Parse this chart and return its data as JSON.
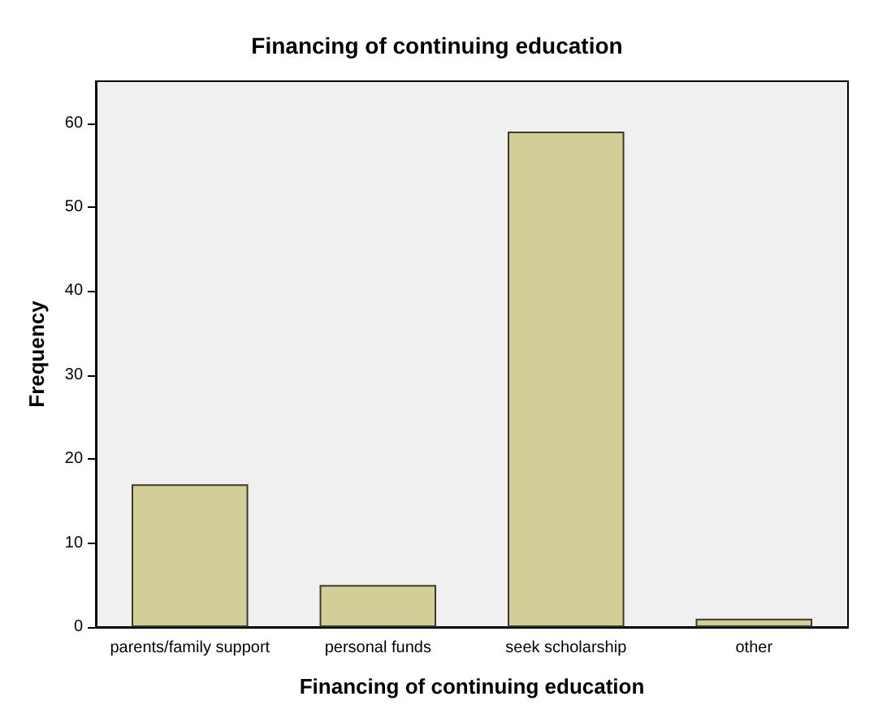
{
  "chart_data": {
    "type": "bar",
    "title": "Financing of continuing education",
    "xlabel": "Financing of continuing education",
    "ylabel": "Frequency",
    "categories": [
      "parents/family support",
      "personal funds",
      "seek scholarship",
      "other"
    ],
    "values": [
      17,
      5,
      59,
      1
    ],
    "color": "#d3ce97",
    "ylim": [
      0,
      65
    ],
    "yticks": [
      0,
      10,
      20,
      30,
      40,
      50,
      60
    ]
  }
}
